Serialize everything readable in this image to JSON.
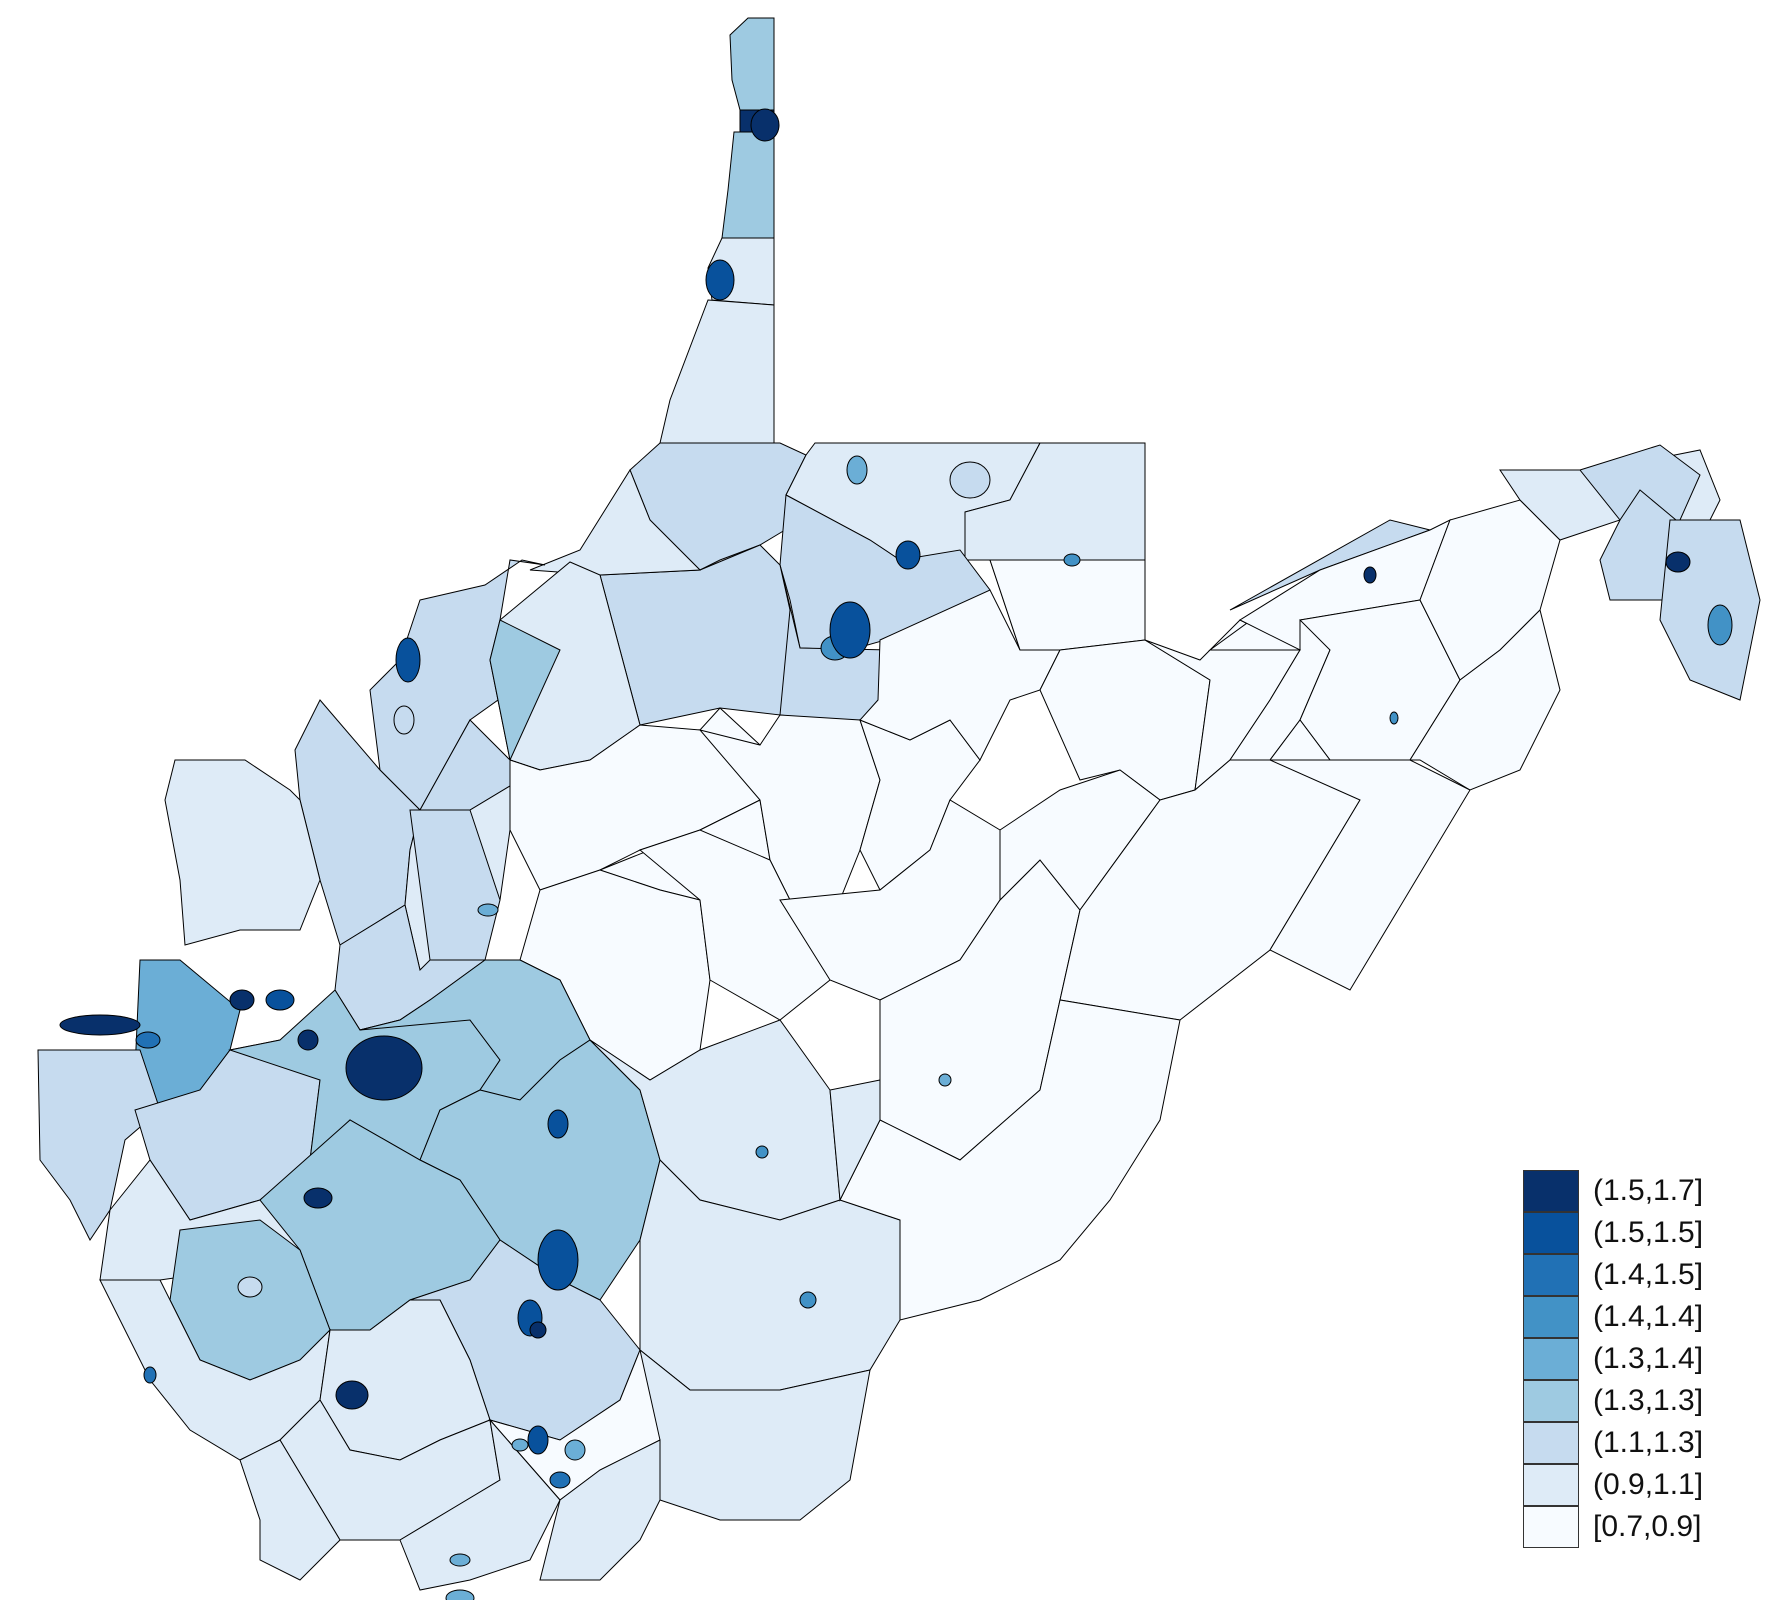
{
  "legend": {
    "classes": [
      {
        "label": "(1.5,1.7]",
        "color": "#08306b"
      },
      {
        "label": "(1.5,1.5]",
        "color": "#08519c"
      },
      {
        "label": "(1.4,1.5]",
        "color": "#2171b5"
      },
      {
        "label": "(1.4,1.4]",
        "color": "#4292c6"
      },
      {
        "label": "(1.3,1.4]",
        "color": "#6baed6"
      },
      {
        "label": "(1.3,1.3]",
        "color": "#9ecae1"
      },
      {
        "label": "(1.1,1.3]",
        "color": "#c6dbef"
      },
      {
        "label": "(0.9,1.1]",
        "color": "#deebf7"
      },
      {
        "label": "[0.7,0.9]",
        "color": "#f7fbff"
      }
    ]
  },
  "colors": {
    "border": "#000000",
    "background": "#ffffff"
  }
}
